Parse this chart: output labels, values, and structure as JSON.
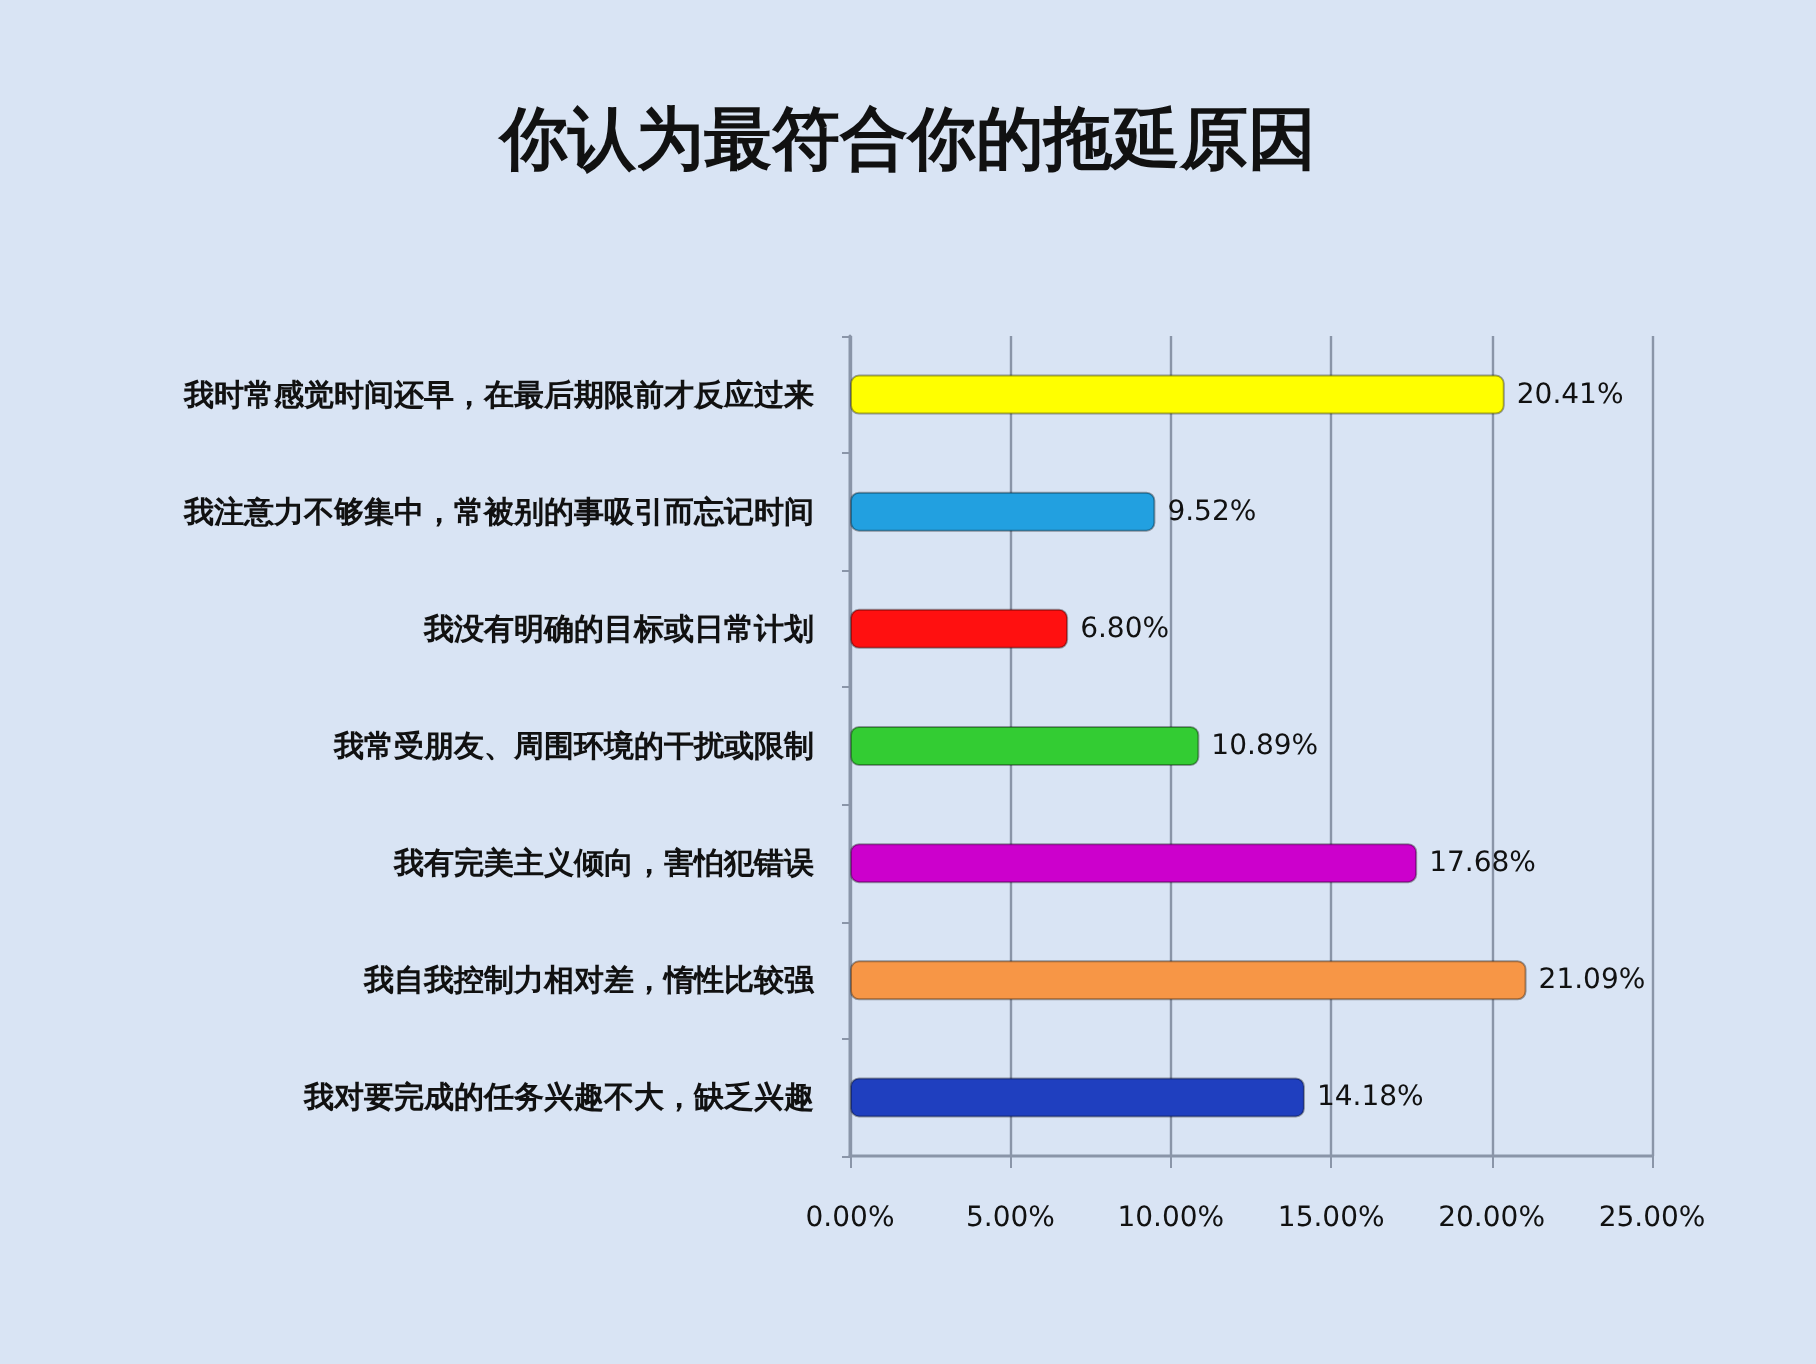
{
  "chart_data": {
    "type": "bar",
    "orientation": "horizontal",
    "title": "你认为最符合你的拖延原因",
    "categories": [
      "我时常感觉时间还早，在最后期限前才反应过来",
      "我注意力不够集中，常被别的事吸引而忘记时间",
      "我没有明确的目标或日常计划",
      "我常受朋友、周围环境的干扰或限制",
      "我有完美主义倾向，害怕犯错误",
      "我自我控制力相对差，惰性比较强",
      "我对要完成的任务兴趣不大，缺乏兴趣"
    ],
    "values": [
      20.41,
      9.52,
      6.8,
      10.89,
      17.68,
      21.09,
      14.18
    ],
    "colors": [
      "#ffff00",
      "#22a0e0",
      "#ff1010",
      "#33cc33",
      "#cc00cc",
      "#f79646",
      "#1f3fbf"
    ],
    "value_labels": [
      "20.41%",
      "9.52%",
      "6.80%",
      "10.89%",
      "17.68%",
      "21.09%",
      "14.18%"
    ],
    "xlim": [
      0,
      25
    ],
    "xticks": [
      {
        "value": 0,
        "label": "0.00%"
      },
      {
        "value": 5,
        "label": "5.00%"
      },
      {
        "value": 10,
        "label": "10.00%"
      },
      {
        "value": 15,
        "label": "15.00%"
      },
      {
        "value": 20,
        "label": "20.00%"
      },
      {
        "value": 25,
        "label": "25.00%"
      }
    ],
    "grid": "x"
  }
}
